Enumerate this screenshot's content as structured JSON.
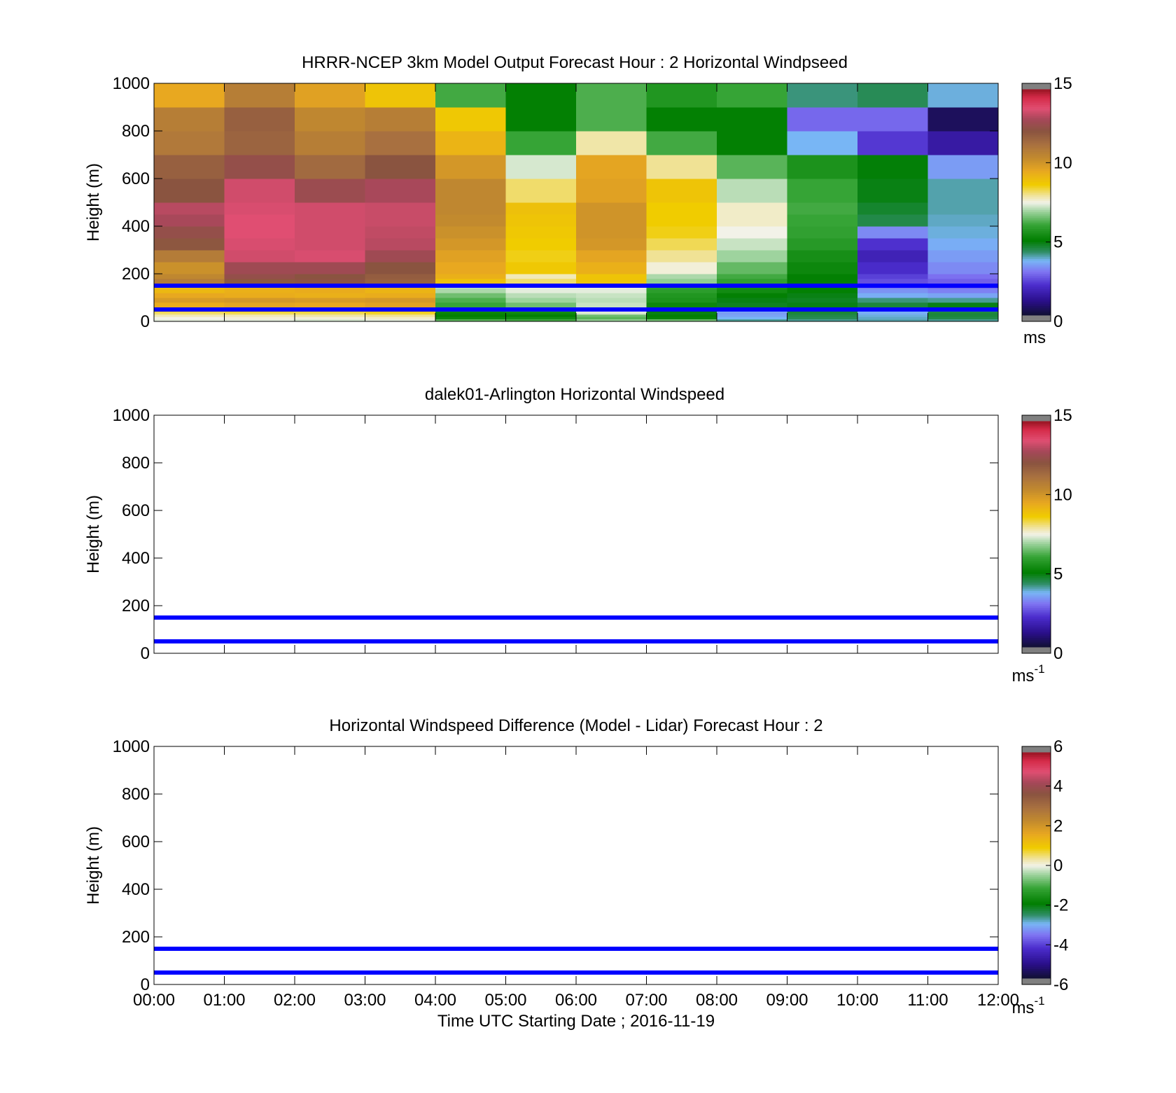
{
  "chart_data": [
    {
      "type": "heatmap",
      "title": "HRRR-NCEP 3km Model Output   Forecast Hour : 2 Horizontal Windpseed",
      "xlabel": "",
      "ylabel": "Height (m)",
      "xlim": [
        0,
        12
      ],
      "ylim": [
        0,
        1000
      ],
      "yticks": [
        "0",
        "200",
        "400",
        "600",
        "800",
        "1000"
      ],
      "xtick_labels_shown": false,
      "reference_lines_m": [
        150,
        50
      ],
      "reference_line_color": "#0000ff",
      "colorbar": {
        "min": 0,
        "max": 15,
        "ticks": [
          "0",
          "5",
          "10",
          "15"
        ],
        "unit_label": "ms",
        "unit_superscript": ""
      },
      "x_bins_hours": [
        0,
        1,
        2,
        3,
        4,
        5,
        6,
        7,
        8,
        9,
        10,
        11,
        12
      ],
      "z_bin_edges_m": [
        0,
        10,
        20,
        30,
        40,
        50,
        60,
        80,
        100,
        120,
        140,
        150,
        160,
        180,
        200,
        250,
        300,
        350,
        400,
        450,
        500,
        600,
        700,
        800,
        900,
        1000
      ],
      "windspeed_ms": [
        [
          7.4,
          7.4,
          7.3,
          7.4,
          6.3,
          6.1,
          6.8,
          6.5,
          4.0,
          4.0,
          3.9,
          4.0
        ],
        [
          7.5,
          7.6,
          7.6,
          7.7,
          5.2,
          5.3,
          6.3,
          5.1,
          3.6,
          4.3,
          3.8,
          4.4
        ],
        [
          7.8,
          7.8,
          7.9,
          8.0,
          5.0,
          5.0,
          6.5,
          5.0,
          3.4,
          4.4,
          3.7,
          4.5
        ],
        [
          8.2,
          8.3,
          8.3,
          8.5,
          5.1,
          5.2,
          7.3,
          4.8,
          3.3,
          4.5,
          3.5,
          4.5
        ],
        [
          8.5,
          8.7,
          8.6,
          8.9,
          5.4,
          5.6,
          7.5,
          4.9,
          3.5,
          4.6,
          3.6,
          4.3
        ],
        [
          9.0,
          9.2,
          9.1,
          9.4,
          5.8,
          6.2,
          7.6,
          5.1,
          4.0,
          4.8,
          4.2,
          4.6
        ],
        [
          9.5,
          9.7,
          9.6,
          9.8,
          6.0,
          6.5,
          7.2,
          5.2,
          4.7,
          4.8,
          4.5,
          4.8
        ],
        [
          10.0,
          10.1,
          10.0,
          10.1,
          6.2,
          6.9,
          7.1,
          5.5,
          4.8,
          4.7,
          4.1,
          4.0
        ],
        [
          9.6,
          9.5,
          9.4,
          9.5,
          6.5,
          7.1,
          7.2,
          5.6,
          5.0,
          4.8,
          3.5,
          3.4
        ],
        [
          9.2,
          9.4,
          9.5,
          9.3,
          7.0,
          7.4,
          7.4,
          5.8,
          5.3,
          5.0,
          3.2,
          3.0
        ],
        [
          9.0,
          9.3,
          9.6,
          9.3,
          7.2,
          7.6,
          7.6,
          6.0,
          5.5,
          5.0,
          2.8,
          2.6
        ],
        [
          10.8,
          11.5,
          11.8,
          11.3,
          8.0,
          8.2,
          8.8,
          6.5,
          5.7,
          5.0,
          2.6,
          2.5
        ],
        [
          11.0,
          12.2,
          12.4,
          11.9,
          9.0,
          8.2,
          8.9,
          6.8,
          5.9,
          5.0,
          2.4,
          2.6
        ],
        [
          10.6,
          12.6,
          12.3,
          12.0,
          9.4,
          7.8,
          8.9,
          7.0,
          6.1,
          5.0,
          2.2,
          2.8
        ],
        [
          10.3,
          12.9,
          12.9,
          12.3,
          9.6,
          8.8,
          9.4,
          7.6,
          6.4,
          5.2,
          1.9,
          3.1
        ],
        [
          11.0,
          13.6,
          13.7,
          12.9,
          9.8,
          8.6,
          9.7,
          8.0,
          6.9,
          5.4,
          1.6,
          3.3
        ],
        [
          12.2,
          13.7,
          13.6,
          13.3,
          10.1,
          8.7,
          10.1,
          8.3,
          7.2,
          5.7,
          2.0,
          3.5
        ],
        [
          12.6,
          13.8,
          13.6,
          13.4,
          10.3,
          8.8,
          10.2,
          8.6,
          7.5,
          5.9,
          3.1,
          3.7
        ],
        [
          13.1,
          13.8,
          13.6,
          13.5,
          10.5,
          8.9,
          10.2,
          8.7,
          7.7,
          6.0,
          4.4,
          3.8
        ],
        [
          13.3,
          13.7,
          13.6,
          13.5,
          10.6,
          9.0,
          10.2,
          8.7,
          7.7,
          6.1,
          4.6,
          3.9
        ],
        [
          12.3,
          13.6,
          12.8,
          13.1,
          10.6,
          8.2,
          9.8,
          8.9,
          7.1,
          6.0,
          4.8,
          3.9
        ],
        [
          11.9,
          12.6,
          11.6,
          12.3,
          10.1,
          7.3,
          9.7,
          8.0,
          6.3,
          5.5,
          4.9,
          3.3
        ],
        [
          11.1,
          11.8,
          10.9,
          11.4,
          9.3,
          6.0,
          7.9,
          6.1,
          5.0,
          3.6,
          2.1,
          1.3
        ],
        [
          10.9,
          11.9,
          10.6,
          10.9,
          8.8,
          5.0,
          6.2,
          5.0,
          5.0,
          2.7,
          2.7,
          0.4
        ],
        [
          9.6,
          10.9,
          9.8,
          8.9,
          6.1,
          5.0,
          6.2,
          5.6,
          6.0,
          4.1,
          4.3,
          3.7
        ]
      ]
    },
    {
      "type": "heatmap",
      "title": "dalek01-Arlington  Horizontal Windspeed",
      "xlabel": "",
      "ylabel": "Height (m)",
      "xlim": [
        0,
        12
      ],
      "ylim": [
        0,
        1000
      ],
      "yticks": [
        "0",
        "200",
        "400",
        "600",
        "800",
        "1000"
      ],
      "xtick_labels_shown": false,
      "reference_lines_m": [
        150,
        50
      ],
      "reference_line_color": "#0000ff",
      "colorbar": {
        "min": 0,
        "max": 15,
        "ticks": [
          "0",
          "5",
          "10",
          "15"
        ],
        "unit_label": "ms",
        "unit_superscript": "-1"
      },
      "windspeed_ms": []
    },
    {
      "type": "heatmap",
      "title": "Horizontal Windspeed Difference (Model - Lidar) Forecast Hour : 2",
      "xlabel": "Time UTC  Starting Date ; 2016-11-19",
      "ylabel": "Height (m)",
      "xlim": [
        0,
        12
      ],
      "ylim": [
        0,
        1000
      ],
      "yticks": [
        "0",
        "200",
        "400",
        "600",
        "800",
        "1000"
      ],
      "xtick_labels_shown": true,
      "xticks": [
        "00:00",
        "01:00",
        "02:00",
        "03:00",
        "04:00",
        "05:00",
        "06:00",
        "07:00",
        "08:00",
        "09:00",
        "10:00",
        "11:00",
        "12:00"
      ],
      "reference_lines_m": [
        150,
        50
      ],
      "reference_line_color": "#0000ff",
      "colorbar": {
        "min": -6,
        "max": 6,
        "ticks": [
          "-6",
          "-4",
          "-2",
          "0",
          "2",
          "4",
          "6"
        ],
        "unit_label": "ms",
        "unit_superscript": "-1"
      },
      "windspeed_ms": []
    }
  ],
  "colormap_stops": [
    [
      0.0,
      "#121038"
    ],
    [
      0.06,
      "#2a0f8a"
    ],
    [
      0.13,
      "#4b2ccc"
    ],
    [
      0.19,
      "#7f74f2"
    ],
    [
      0.24,
      "#78b6f5"
    ],
    [
      0.28,
      "#2e8d63"
    ],
    [
      0.33,
      "#007e00"
    ],
    [
      0.4,
      "#36a436"
    ],
    [
      0.46,
      "#9ed39e"
    ],
    [
      0.5,
      "#f2f2e8"
    ],
    [
      0.53,
      "#f0e4a0"
    ],
    [
      0.58,
      "#f0cc00"
    ],
    [
      0.64,
      "#e8a820"
    ],
    [
      0.7,
      "#c28a2e"
    ],
    [
      0.76,
      "#a87040"
    ],
    [
      0.82,
      "#8a5440"
    ],
    [
      0.87,
      "#a44858"
    ],
    [
      0.92,
      "#e04e72"
    ],
    [
      0.97,
      "#d42a48"
    ],
    [
      1.0,
      "#a01828"
    ]
  ],
  "colorbar_end_color": "#808080"
}
